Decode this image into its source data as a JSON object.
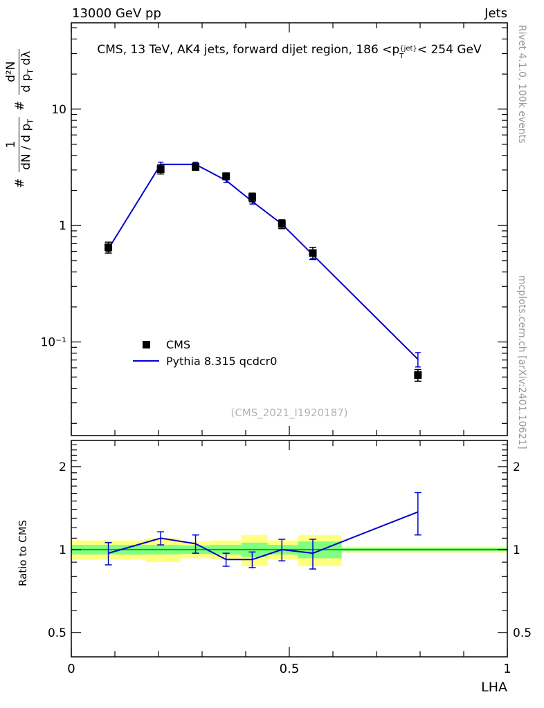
{
  "header": {
    "left": "13000 GeV pp",
    "right": "Jets"
  },
  "title": {
    "prefix": "CMS, 13 TeV, AK4 jets, forward dijet region, 186 <p",
    "sup": "{jet}",
    "sub": "T",
    "suffix": "< 254 GeV"
  },
  "ylabel": {
    "hash1": "#",
    "frac1_num": "1",
    "frac1_den": "dN / d p",
    "frac1_den_sub": "T",
    "hash2": "#",
    "frac2_num": "d²N",
    "frac2_den_a": "d p",
    "frac2_den_a_sub": "T",
    "frac2_den_b": " dλ"
  },
  "watermark": "(CMS_2021_I1920187)",
  "legend": [
    {
      "label": "CMS"
    },
    {
      "label": "Pythia 8.315 qcdcr0"
    }
  ],
  "credits": {
    "top": "Rivet 4.1.0, 100k events",
    "bottom": "mcplots.cern.ch [arXiv:2401.10621]"
  },
  "colors": {
    "pythia": "#0000cc",
    "marker": "#000000",
    "band_yellow": "#ffff80",
    "band_green": "#80ff80",
    "ref_line": "#00b300",
    "frame": "#000000",
    "credit_gray": "#999999"
  },
  "chart_data": {
    "type": "line",
    "title": "CMS, 13 TeV, AK4 jets, forward dijet region, 186 <p_T^{jet} < 254 GeV",
    "xlabel": "LHA",
    "ylabel": "# 1/(dN/dp_T) d²N/(dp_T dλ)",
    "xlim": [
      0,
      1
    ],
    "main_ylim": [
      0.0157,
      55.1
    ],
    "yscale": "log",
    "x": [
      0.085,
      0.205,
      0.285,
      0.355,
      0.415,
      0.483,
      0.554,
      0.795
    ],
    "series": [
      {
        "name": "CMS",
        "style": "squares",
        "values": [
          0.65,
          3.05,
          3.2,
          2.65,
          1.75,
          1.03,
          0.58,
          0.052
        ],
        "errors": [
          0.07,
          0.28,
          0.22,
          0.18,
          0.15,
          0.09,
          0.07,
          0.006
        ]
      },
      {
        "name": "Pythia 8.315 qcdcr0",
        "style": "line",
        "values": [
          0.63,
          3.35,
          3.35,
          2.44,
          1.61,
          1.03,
          0.56,
          0.071
        ],
        "errors": [
          0.03,
          0.15,
          0.15,
          0.1,
          0.08,
          0.05,
          0.04,
          0.01
        ]
      }
    ],
    "yticks_main": [
      {
        "v": 10,
        "label": "10"
      },
      {
        "v": 1,
        "label": "1"
      },
      {
        "v": 0.1,
        "label": "10⁻¹"
      }
    ],
    "xticks": [
      {
        "v": 0,
        "label": "0"
      },
      {
        "v": 0.5,
        "label": "0.5"
      },
      {
        "v": 1,
        "label": "1"
      }
    ],
    "ratio": {
      "label": "Ratio to CMS",
      "ylim": [
        0.408,
        2.49
      ],
      "yscale": "log",
      "values": [
        0.97,
        1.1,
        1.05,
        0.92,
        0.92,
        1.0,
        0.97,
        1.37
      ],
      "errors": [
        0.09,
        0.06,
        0.08,
        0.05,
        0.06,
        0.09,
        0.12,
        0.24
      ],
      "yticks": [
        {
          "v": 0.5,
          "label": "0.5"
        },
        {
          "v": 1,
          "label": "1"
        },
        {
          "v": 2,
          "label": "2"
        }
      ],
      "bands": [
        {
          "xlo": 0.0,
          "xhi": 0.17,
          "green": 0.04,
          "yellow": 0.08
        },
        {
          "xlo": 0.17,
          "xhi": 0.25,
          "green": 0.04,
          "yellow": 0.1
        },
        {
          "xlo": 0.25,
          "xhi": 0.32,
          "green": 0.035,
          "yellow": 0.07
        },
        {
          "xlo": 0.32,
          "xhi": 0.39,
          "green": 0.04,
          "yellow": 0.08
        },
        {
          "xlo": 0.39,
          "xhi": 0.45,
          "green": 0.06,
          "yellow": 0.13
        },
        {
          "xlo": 0.45,
          "xhi": 0.52,
          "green": 0.04,
          "yellow": 0.08
        },
        {
          "xlo": 0.52,
          "xhi": 0.62,
          "green": 0.07,
          "yellow": 0.13
        },
        {
          "xlo": 0.62,
          "xhi": 1.0,
          "green": 0.012,
          "yellow": 0.025
        }
      ]
    }
  }
}
